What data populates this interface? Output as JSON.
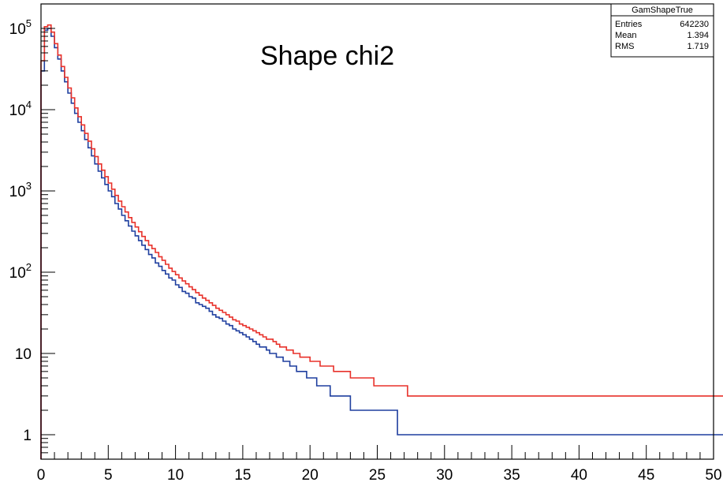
{
  "chart_data": {
    "type": "line",
    "title": "Shape chi2",
    "xlabel": "",
    "ylabel": "",
    "xlim": [
      0,
      50
    ],
    "ylim": [
      0.5,
      200000
    ],
    "log_y": true,
    "grid": false,
    "legend": "none",
    "x_tick_labels": [
      "0",
      "5",
      "10",
      "15",
      "20",
      "25",
      "30",
      "35",
      "40",
      "45",
      "50"
    ],
    "x_tick_values": [
      0,
      5,
      10,
      15,
      20,
      25,
      30,
      35,
      40,
      45,
      50
    ],
    "y_tick_values": [
      1,
      10,
      100,
      1000,
      10000,
      100000
    ],
    "y_tick_labels": [
      {
        "base": "1",
        "exp": ""
      },
      {
        "base": "10",
        "exp": ""
      },
      {
        "base": "10",
        "exp": "2"
      },
      {
        "base": "10",
        "exp": "3"
      },
      {
        "base": "10",
        "exp": "4"
      },
      {
        "base": "10",
        "exp": "5"
      }
    ],
    "stats_box": {
      "name": "GamShapeTrue",
      "rows": [
        {
          "label": "Entries",
          "value": "642230"
        },
        {
          "label": "Mean",
          "value": "1.394"
        },
        {
          "label": "RMS",
          "value": "1.719"
        }
      ]
    },
    "bin_width": 0.25,
    "series": [
      {
        "color": "#1f3f9f",
        "values": [
          30000,
          95000,
          100000,
          80000,
          58000,
          42000,
          30000,
          22000,
          16000,
          12000,
          9000,
          7000,
          5500,
          4300,
          3400,
          2700,
          2150,
          1750,
          1450,
          1200,
          1000,
          850,
          700,
          600,
          500,
          430,
          370,
          320,
          280,
          245,
          215,
          190,
          165,
          150,
          130,
          118,
          105,
          95,
          85,
          80,
          70,
          65,
          58,
          55,
          50,
          48,
          42,
          40,
          38,
          36,
          33,
          30,
          28,
          27,
          25,
          23,
          22,
          20,
          19,
          18,
          17,
          16,
          15,
          14,
          13,
          12,
          12,
          11,
          10,
          10,
          9,
          9,
          8,
          8,
          7,
          7,
          6,
          6,
          6,
          5,
          5,
          5,
          4,
          4,
          4,
          4,
          3,
          3,
          3,
          3,
          3,
          3,
          2,
          2,
          2,
          2,
          2,
          2,
          2,
          2,
          2,
          2,
          2,
          2,
          2,
          2,
          1,
          1,
          1,
          1,
          1,
          1,
          1,
          1,
          1,
          1,
          1,
          1,
          1,
          1,
          1,
          1,
          1,
          1,
          1,
          1,
          1,
          1,
          1,
          1,
          1,
          1,
          1,
          1,
          1,
          1,
          1,
          1,
          1,
          1,
          1,
          1,
          1,
          1,
          1,
          1,
          1,
          1,
          1,
          1,
          1,
          1,
          1,
          1,
          1,
          1,
          1,
          1,
          1,
          1,
          1,
          1,
          1,
          1,
          1,
          1,
          1,
          1,
          1,
          1,
          1,
          1,
          1,
          1,
          1,
          1,
          1,
          1,
          1,
          1,
          1,
          1,
          1,
          1,
          1,
          1,
          1,
          1,
          1,
          1,
          1,
          1,
          1,
          1,
          1,
          1,
          1,
          1,
          1,
          1,
          1,
          1,
          1,
          1,
          1,
          1,
          1,
          1,
          1,
          1,
          1,
          1,
          1,
          1
        ]
      },
      {
        "color": "#e8312a",
        "values": [
          40000,
          105000,
          110000,
          90000,
          65000,
          47000,
          34000,
          25000,
          18500,
          14000,
          10500,
          8200,
          6500,
          5100,
          4100,
          3300,
          2650,
          2150,
          1800,
          1500,
          1250,
          1050,
          880,
          750,
          640,
          550,
          470,
          410,
          360,
          315,
          275,
          245,
          215,
          195,
          175,
          155,
          140,
          125,
          112,
          102,
          93,
          85,
          78,
          72,
          66,
          61,
          56,
          52,
          48,
          45,
          42,
          39,
          36,
          34,
          32,
          30,
          28,
          26,
          25,
          23,
          22,
          21,
          20,
          19,
          18,
          17,
          16,
          15,
          15,
          14,
          13,
          12,
          12,
          11,
          11,
          10,
          10,
          9,
          9,
          9,
          8,
          8,
          8,
          7,
          7,
          7,
          7,
          6,
          6,
          6,
          6,
          6,
          5,
          5,
          5,
          5,
          5,
          5,
          5,
          4,
          4,
          4,
          4,
          4,
          4,
          4,
          4,
          4,
          4,
          3,
          3,
          3,
          3,
          3,
          3,
          3,
          3,
          3,
          3,
          3,
          3,
          3,
          3,
          3,
          3,
          3,
          3,
          3,
          3,
          3,
          3,
          3,
          3,
          3,
          3,
          3,
          3,
          3,
          3,
          3,
          3,
          3,
          3,
          3,
          3,
          3,
          3,
          3,
          3,
          3,
          3,
          3,
          3,
          3,
          3,
          3,
          3,
          3,
          3,
          3,
          3,
          3,
          3,
          3,
          3,
          3,
          3,
          3,
          3,
          3,
          3,
          3,
          3,
          3,
          3,
          3,
          3,
          3,
          3,
          3,
          3,
          3,
          3,
          3,
          3,
          3,
          3,
          3,
          3,
          3,
          3,
          3,
          3,
          3,
          3,
          3,
          3,
          3,
          3,
          3,
          3,
          3,
          3,
          3,
          3,
          3,
          3,
          3,
          3,
          3,
          3,
          3,
          3,
          3,
          3
        ]
      }
    ]
  }
}
